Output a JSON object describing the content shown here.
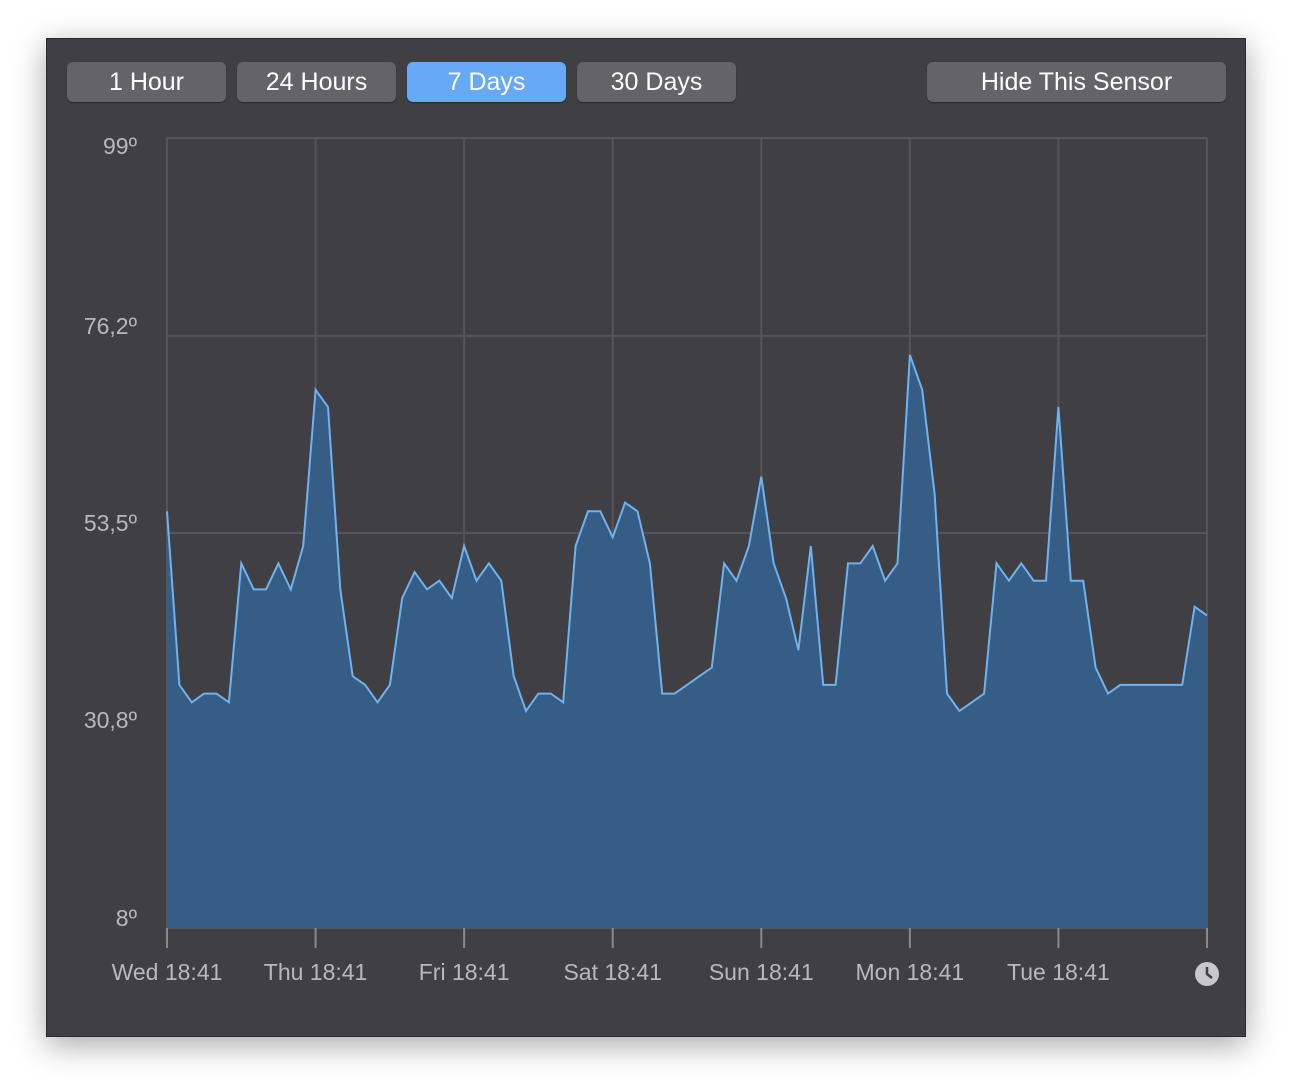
{
  "buttons": [
    "1 Hour",
    "24 Hours",
    "7 Days",
    "30 Days"
  ],
  "selected": 2,
  "hide_button": "Hide This Sensor",
  "chart_data": {
    "type": "area",
    "color": "#6fb2f0",
    "fill": "#365d86",
    "grid": true,
    "x": [
      0,
      2,
      4,
      6,
      8,
      10,
      12,
      14,
      16,
      18,
      20,
      22,
      24,
      26,
      28,
      30,
      32,
      34,
      36,
      38,
      40,
      42,
      44,
      46,
      48,
      50,
      52,
      54,
      56,
      58,
      60,
      62,
      64,
      66,
      68,
      70,
      72,
      74,
      76,
      78,
      80,
      82,
      84,
      86,
      88,
      90,
      92,
      94,
      96,
      98,
      100,
      102,
      104,
      106,
      108,
      110,
      112,
      114,
      116,
      118,
      120,
      122,
      124,
      126,
      128,
      130,
      132,
      134,
      136,
      138,
      140,
      142,
      144,
      146,
      148,
      150,
      152,
      154,
      156,
      158,
      160,
      162,
      164,
      166,
      168
    ],
    "values": [
      56,
      36,
      34,
      35,
      35,
      34,
      50,
      47,
      47,
      50,
      47,
      52,
      70,
      68,
      47,
      37,
      36,
      34,
      36,
      46,
      49,
      47,
      48,
      46,
      52,
      48,
      50,
      48,
      37,
      33,
      35,
      35,
      34,
      52,
      56,
      56,
      53,
      57,
      56,
      50,
      35,
      35,
      36,
      37,
      38,
      50,
      48,
      52,
      60,
      50,
      46,
      40,
      52,
      36,
      36,
      50,
      50,
      52,
      48,
      50,
      74,
      70,
      58,
      35,
      33,
      34,
      35,
      50,
      48,
      50,
      48,
      48,
      68,
      48,
      48,
      38,
      35,
      36,
      36,
      36,
      36,
      36,
      36,
      45,
      44
    ],
    "xlim": [
      0,
      168
    ],
    "xticks": [
      {
        "value": 0,
        "label": "Wed 18:41"
      },
      {
        "value": 24,
        "label": "Thu 18:41"
      },
      {
        "value": 48,
        "label": "Fri 18:41"
      },
      {
        "value": 72,
        "label": "Sat 18:41"
      },
      {
        "value": 96,
        "label": "Sun 18:41"
      },
      {
        "value": 120,
        "label": "Mon 18:41"
      },
      {
        "value": 144,
        "label": "Tue 18:41"
      }
    ],
    "ylim": [
      8,
      99
    ],
    "yticks": [
      {
        "value": 8,
        "label": "8º"
      },
      {
        "value": 30.8,
        "label": "30,8º"
      },
      {
        "value": 53.5,
        "label": "53,5º"
      },
      {
        "value": 76.2,
        "label": "76,2º"
      },
      {
        "value": 99,
        "label": "99º"
      }
    ]
  }
}
